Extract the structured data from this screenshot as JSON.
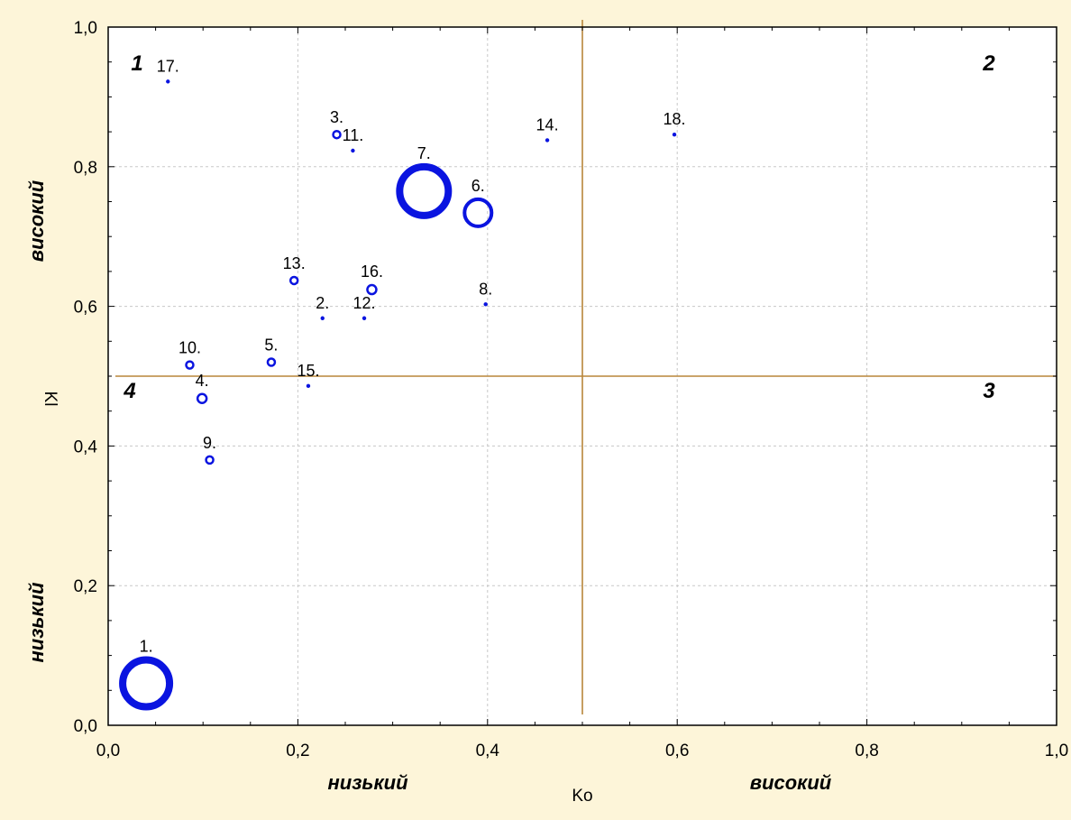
{
  "chart_data": {
    "type": "scatter",
    "title": "",
    "xlabel": "Ko",
    "ylabel": "Kl",
    "xlim": [
      0.0,
      1.0
    ],
    "ylim": [
      0.0,
      1.0
    ],
    "xticks": [
      "0,0",
      "0,2",
      "0,4",
      "0,6",
      "0,8",
      "1,0"
    ],
    "yticks": [
      "0,0",
      "0,2",
      "0,4",
      "0,6",
      "0,8",
      "1,0"
    ],
    "grid": true,
    "colors": {
      "points": "#0a14e0",
      "divider": "#b8863a",
      "background": "#fdf5d9",
      "plot": "#ffffff"
    },
    "divider_lines": {
      "x": 0.5,
      "y": 0.5
    },
    "x_zone_labels": {
      "low": "низький",
      "high": "високий"
    },
    "y_zone_labels": {
      "low": "низький",
      "high": "високий"
    },
    "quadrant_labels": [
      {
        "label": "1",
        "position": "top-left"
      },
      {
        "label": "2",
        "position": "top-right"
      },
      {
        "label": "3",
        "position": "bottom-right"
      },
      {
        "label": "4",
        "position": "bottom-left"
      }
    ],
    "points": [
      {
        "label": "1.",
        "x": 0.04,
        "y": 0.06,
        "size": 26
      },
      {
        "label": "2.",
        "x": 0.226,
        "y": 0.583,
        "size": 0
      },
      {
        "label": "3.",
        "x": 0.241,
        "y": 0.846,
        "size": 4
      },
      {
        "label": "4.",
        "x": 0.099,
        "y": 0.468,
        "size": 5
      },
      {
        "label": "5.",
        "x": 0.172,
        "y": 0.52,
        "size": 4
      },
      {
        "label": "6.",
        "x": 0.39,
        "y": 0.734,
        "size": 15
      },
      {
        "label": "7.",
        "x": 0.333,
        "y": 0.765,
        "size": 27
      },
      {
        "label": "8.",
        "x": 0.398,
        "y": 0.603,
        "size": 0
      },
      {
        "label": "9.",
        "x": 0.107,
        "y": 0.38,
        "size": 4
      },
      {
        "label": "10.",
        "x": 0.086,
        "y": 0.516,
        "size": 4
      },
      {
        "label": "11.",
        "x": 0.258,
        "y": 0.823,
        "size": 0
      },
      {
        "label": "12.",
        "x": 0.27,
        "y": 0.583,
        "size": 0
      },
      {
        "label": "13.",
        "x": 0.196,
        "y": 0.637,
        "size": 4
      },
      {
        "label": "14.",
        "x": 0.463,
        "y": 0.838,
        "size": 0
      },
      {
        "label": "15.",
        "x": 0.211,
        "y": 0.486,
        "size": 0
      },
      {
        "label": "16.",
        "x": 0.278,
        "y": 0.624,
        "size": 5
      },
      {
        "label": "17.",
        "x": 0.063,
        "y": 0.922,
        "size": 0
      },
      {
        "label": "18.",
        "x": 0.597,
        "y": 0.846,
        "size": 0
      }
    ]
  }
}
